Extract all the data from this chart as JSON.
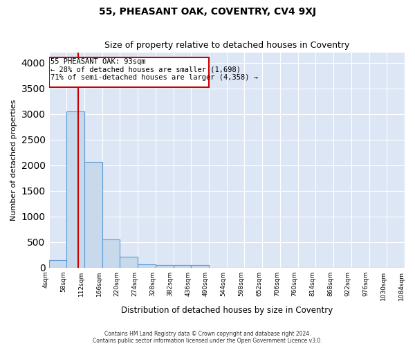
{
  "title": "55, PHEASANT OAK, COVENTRY, CV4 9XJ",
  "subtitle": "Size of property relative to detached houses in Coventry",
  "xlabel": "Distribution of detached houses by size in Coventry",
  "ylabel": "Number of detached properties",
  "bin_edges": [
    4,
    58,
    112,
    166,
    220,
    274,
    328,
    382,
    436,
    490,
    544,
    598,
    652,
    706,
    760,
    814,
    868,
    922,
    976,
    1030,
    1084
  ],
  "bar_heights": [
    140,
    3050,
    2070,
    550,
    210,
    70,
    55,
    55,
    55,
    0,
    0,
    0,
    0,
    0,
    0,
    0,
    0,
    0,
    0,
    0
  ],
  "bar_color": "#c9d9ec",
  "bar_edge_color": "#5b9bd5",
  "property_size": 93,
  "property_line_color": "#cc0000",
  "annotation_text": "55 PHEASANT OAK: 93sqm\n← 28% of detached houses are smaller (1,698)\n71% of semi-detached houses are larger (4,358) →",
  "annotation_box_color": "#ffffff",
  "annotation_box_edge_color": "#cc0000",
  "ylim": [
    0,
    4200
  ],
  "yticks": [
    0,
    500,
    1000,
    1500,
    2000,
    2500,
    3000,
    3500,
    4000
  ],
  "background_color": "#dce6f5",
  "grid_color": "#ffffff",
  "fig_background": "#ffffff",
  "footer_line1": "Contains HM Land Registry data © Crown copyright and database right 2024.",
  "footer_line2": "Contains public sector information licensed under the Open Government Licence v3.0."
}
